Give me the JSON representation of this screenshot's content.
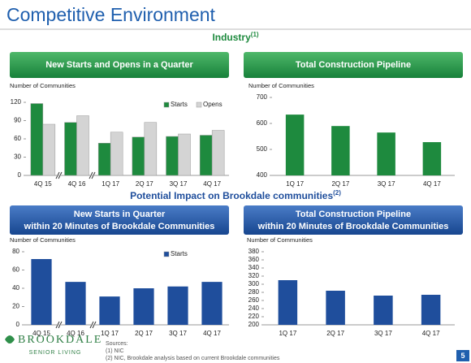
{
  "slide": {
    "title": "Competitive Environment",
    "sections": [
      {
        "text": "Industry",
        "note": "(1)"
      },
      {
        "text": "Potential Impact on Brookdale communities",
        "note": "(2)"
      }
    ],
    "logo": [
      "BROOKDALE",
      "SENIOR LIVING"
    ],
    "sources": [
      "Sources:",
      "(1) NIC",
      "(2) NIC, Brookdale analysis based on current Brookdale communities"
    ],
    "page": 5
  },
  "chart_data": [
    {
      "type": "bar",
      "title": [
        "New Starts and Opens in a Quarter"
      ],
      "y_label": "Number of Communities",
      "categories": [
        "4Q 15",
        "4Q 16",
        "1Q 17",
        "2Q 17",
        "3Q 17",
        "4Q 17"
      ],
      "series": [
        {
          "name": "Starts",
          "color": "#1e8a3e",
          "values": [
            118,
            87,
            53,
            63,
            64,
            66
          ]
        },
        {
          "name": "Opens",
          "color": "#d4d4d4",
          "values": [
            84,
            98,
            71,
            87,
            68,
            74
          ]
        }
      ],
      "ylim": [
        0,
        120
      ],
      "yticks": [
        0,
        30,
        60,
        90,
        120
      ],
      "legend": "top-right"
    },
    {
      "type": "bar",
      "title": [
        "Total Construction Pipeline"
      ],
      "y_label": "Number of Communities",
      "categories": [
        "1Q 17",
        "2Q 17",
        "3Q 17",
        "4Q 17"
      ],
      "color": "#1e8a3e",
      "values": [
        634,
        590,
        565,
        528
      ],
      "ylim": [
        400,
        700
      ],
      "yticks": [
        400,
        500,
        600,
        700
      ]
    },
    {
      "type": "bar",
      "title": [
        "New Starts in Quarter",
        "within 20 Minutes of Brookdale Communities"
      ],
      "y_label": "Number of Communities",
      "categories": [
        "4Q 15",
        "4Q 16",
        "1Q 17",
        "2Q 17",
        "3Q 17",
        "4Q 17"
      ],
      "series": [
        {
          "name": "Starts",
          "color": "#1f4e9c",
          "values": [
            72,
            47,
            31,
            40,
            42,
            47
          ]
        }
      ],
      "ylim": [
        0,
        80
      ],
      "yticks": [
        0,
        20,
        40,
        60,
        80
      ],
      "legend": "top-right"
    },
    {
      "type": "bar",
      "title": [
        "Total Construction Pipeline",
        "within 20 Minutes of Brookdale Communities"
      ],
      "y_label": "Number of Communities",
      "categories": [
        "1Q 17",
        "2Q 17",
        "3Q 17",
        "4Q 17"
      ],
      "color": "#1f4e9c",
      "values": [
        310,
        284,
        272,
        274
      ],
      "ylim": [
        200,
        380
      ],
      "yticks": [
        200,
        220,
        240,
        260,
        280,
        300,
        320,
        340,
        360,
        380
      ]
    }
  ]
}
